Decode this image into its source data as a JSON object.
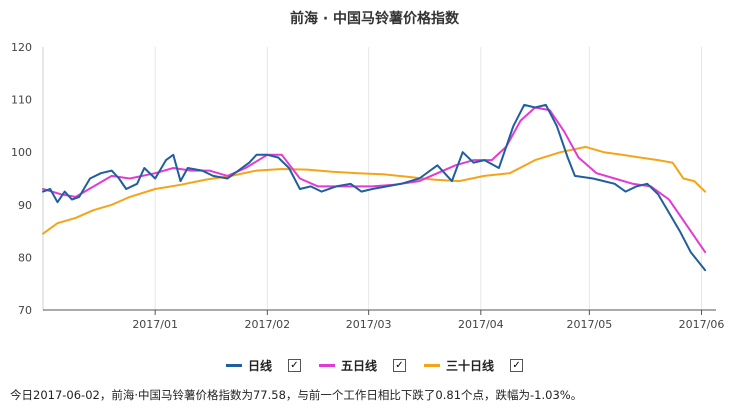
{
  "chart_data": {
    "type": "line",
    "title": "前海 · 中国马铃薯价格指数",
    "ylim": [
      70,
      120
    ],
    "yticks": [
      70,
      80,
      90,
      100,
      110,
      120
    ],
    "xlim": [
      "2016-12-01",
      "2017-06-05"
    ],
    "x_ticks": [
      {
        "date": "2017-01-01",
        "label": "2017/01"
      },
      {
        "date": "2017-02-01",
        "label": "2017/02"
      },
      {
        "date": "2017-03-01",
        "label": "2017/03"
      },
      {
        "date": "2017-04-01",
        "label": "2017/04"
      },
      {
        "date": "2017-05-01",
        "label": "2017/05"
      },
      {
        "date": "2017-06-01",
        "label": "2017/06"
      }
    ],
    "grid": "vertical",
    "legend_position": "bottom",
    "series": [
      {
        "name": "日线",
        "color": "#1f5f9e",
        "points": [
          [
            "2016-12-01",
            92.5
          ],
          [
            "2016-12-03",
            93.0
          ],
          [
            "2016-12-05",
            90.5
          ],
          [
            "2016-12-07",
            92.5
          ],
          [
            "2016-12-09",
            91.0
          ],
          [
            "2016-12-11",
            91.5
          ],
          [
            "2016-12-14",
            95.0
          ],
          [
            "2016-12-17",
            96.0
          ],
          [
            "2016-12-20",
            96.5
          ],
          [
            "2016-12-22",
            95.0
          ],
          [
            "2016-12-24",
            93.0
          ],
          [
            "2016-12-27",
            94.0
          ],
          [
            "2016-12-29",
            97.0
          ],
          [
            "2017-01-01",
            95.0
          ],
          [
            "2017-01-04",
            98.5
          ],
          [
            "2017-01-06",
            99.5
          ],
          [
            "2017-01-08",
            94.5
          ],
          [
            "2017-01-10",
            97.0
          ],
          [
            "2017-01-14",
            96.5
          ],
          [
            "2017-01-17",
            95.5
          ],
          [
            "2017-01-21",
            95.0
          ],
          [
            "2017-01-24",
            96.5
          ],
          [
            "2017-01-27",
            98.0
          ],
          [
            "2017-01-29",
            99.5
          ],
          [
            "2017-02-01",
            99.5
          ],
          [
            "2017-02-04",
            99.0
          ],
          [
            "2017-02-07",
            97.0
          ],
          [
            "2017-02-10",
            93.0
          ],
          [
            "2017-02-13",
            93.5
          ],
          [
            "2017-02-16",
            92.5
          ],
          [
            "2017-02-20",
            93.5
          ],
          [
            "2017-02-24",
            94.0
          ],
          [
            "2017-02-27",
            92.5
          ],
          [
            "2017-03-02",
            93.0
          ],
          [
            "2017-03-06",
            93.5
          ],
          [
            "2017-03-10",
            94.0
          ],
          [
            "2017-03-15",
            95.0
          ],
          [
            "2017-03-20",
            97.5
          ],
          [
            "2017-03-24",
            94.5
          ],
          [
            "2017-03-27",
            100.0
          ],
          [
            "2017-03-30",
            98.0
          ],
          [
            "2017-04-02",
            98.5
          ],
          [
            "2017-04-06",
            97.0
          ],
          [
            "2017-04-10",
            105.0
          ],
          [
            "2017-04-13",
            109.0
          ],
          [
            "2017-04-16",
            108.5
          ],
          [
            "2017-04-19",
            109.0
          ],
          [
            "2017-04-22",
            105.0
          ],
          [
            "2017-04-25",
            99.0
          ],
          [
            "2017-04-27",
            95.5
          ],
          [
            "2017-05-02",
            95.0
          ],
          [
            "2017-05-05",
            94.5
          ],
          [
            "2017-05-08",
            94.0
          ],
          [
            "2017-05-11",
            92.5
          ],
          [
            "2017-05-14",
            93.5
          ],
          [
            "2017-05-17",
            94.0
          ],
          [
            "2017-05-20",
            92.0
          ],
          [
            "2017-05-23",
            88.5
          ],
          [
            "2017-05-26",
            85.0
          ],
          [
            "2017-05-29",
            81.0
          ],
          [
            "2017-06-02",
            77.58
          ]
        ]
      },
      {
        "name": "五日线",
        "color": "#e23ad4",
        "points": [
          [
            "2016-12-01",
            93.0
          ],
          [
            "2016-12-06",
            92.0
          ],
          [
            "2016-12-10",
            91.5
          ],
          [
            "2016-12-15",
            93.5
          ],
          [
            "2016-12-20",
            95.5
          ],
          [
            "2016-12-25",
            95.0
          ],
          [
            "2017-01-01",
            96.0
          ],
          [
            "2017-01-06",
            97.0
          ],
          [
            "2017-01-11",
            96.5
          ],
          [
            "2017-01-16",
            96.5
          ],
          [
            "2017-01-21",
            95.5
          ],
          [
            "2017-01-26",
            97.0
          ],
          [
            "2017-02-01",
            99.5
          ],
          [
            "2017-02-05",
            99.5
          ],
          [
            "2017-02-10",
            95.0
          ],
          [
            "2017-02-15",
            93.5
          ],
          [
            "2017-02-20",
            93.5
          ],
          [
            "2017-02-25",
            93.5
          ],
          [
            "2017-03-02",
            93.5
          ],
          [
            "2017-03-08",
            93.8
          ],
          [
            "2017-03-15",
            94.5
          ],
          [
            "2017-03-20",
            96.0
          ],
          [
            "2017-03-25",
            97.5
          ],
          [
            "2017-03-30",
            98.5
          ],
          [
            "2017-04-04",
            98.5
          ],
          [
            "2017-04-08",
            101.0
          ],
          [
            "2017-04-12",
            106.0
          ],
          [
            "2017-04-16",
            108.5
          ],
          [
            "2017-04-20",
            108.0
          ],
          [
            "2017-04-24",
            104.0
          ],
          [
            "2017-04-28",
            99.0
          ],
          [
            "2017-05-03",
            96.0
          ],
          [
            "2017-05-08",
            95.0
          ],
          [
            "2017-05-13",
            94.0
          ],
          [
            "2017-05-18",
            93.5
          ],
          [
            "2017-05-23",
            91.0
          ],
          [
            "2017-05-28",
            86.0
          ],
          [
            "2017-06-02",
            81.0
          ]
        ]
      },
      {
        "name": "三十日线",
        "color": "#f5a418",
        "points": [
          [
            "2016-12-01",
            84.5
          ],
          [
            "2016-12-05",
            86.5
          ],
          [
            "2016-12-10",
            87.5
          ],
          [
            "2016-12-15",
            89.0
          ],
          [
            "2016-12-20",
            90.0
          ],
          [
            "2016-12-25",
            91.5
          ],
          [
            "2017-01-01",
            93.0
          ],
          [
            "2017-01-08",
            93.8
          ],
          [
            "2017-01-15",
            94.8
          ],
          [
            "2017-01-22",
            95.5
          ],
          [
            "2017-01-29",
            96.5
          ],
          [
            "2017-02-05",
            96.8
          ],
          [
            "2017-02-12",
            96.7
          ],
          [
            "2017-02-19",
            96.3
          ],
          [
            "2017-02-26",
            96.0
          ],
          [
            "2017-03-05",
            95.8
          ],
          [
            "2017-03-12",
            95.3
          ],
          [
            "2017-03-19",
            94.8
          ],
          [
            "2017-03-26",
            94.5
          ],
          [
            "2017-04-02",
            95.5
          ],
          [
            "2017-04-09",
            96.0
          ],
          [
            "2017-04-16",
            98.5
          ],
          [
            "2017-04-23",
            100.0
          ],
          [
            "2017-04-30",
            101.0
          ],
          [
            "2017-05-05",
            100.0
          ],
          [
            "2017-05-10",
            99.5
          ],
          [
            "2017-05-15",
            99.0
          ],
          [
            "2017-05-20",
            98.5
          ],
          [
            "2017-05-24",
            98.0
          ],
          [
            "2017-05-27",
            95.0
          ],
          [
            "2017-05-30",
            94.5
          ],
          [
            "2017-06-02",
            92.5
          ]
        ]
      }
    ]
  },
  "legend": {
    "items": [
      {
        "label": "日线",
        "checked": true
      },
      {
        "label": "五日线",
        "checked": true
      },
      {
        "label": "三十日线",
        "checked": true
      }
    ],
    "checkmark": "✓"
  },
  "summary": "今日2017-06-02，前海·中国马铃薯价格指数为77.58，与前一个工作日相比下跌了0.81个点，跌幅为-1.03%。"
}
